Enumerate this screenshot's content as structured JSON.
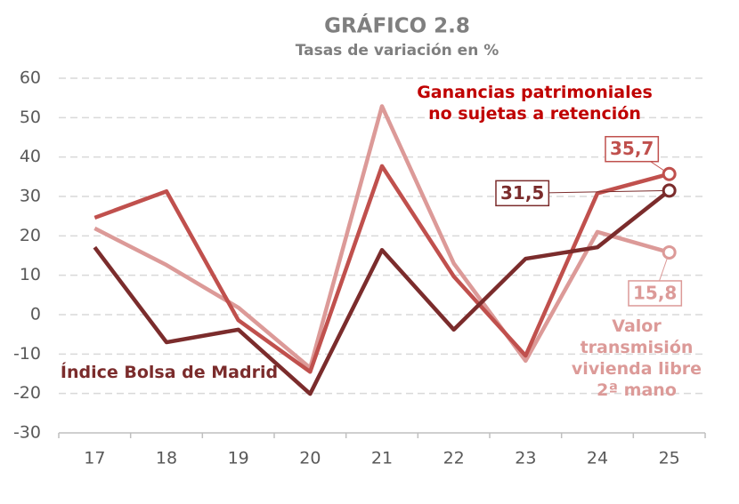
{
  "chart_data": {
    "type": "line",
    "title": "GRÁFICO 2.8",
    "subtitle": "Tasas de variación en %",
    "categories": [
      "17",
      "18",
      "19",
      "20",
      "21",
      "22",
      "23",
      "24",
      "25"
    ],
    "ylim": [
      -30,
      60
    ],
    "yticks": [
      -30,
      -20,
      -10,
      0,
      10,
      20,
      30,
      40,
      50,
      60
    ],
    "grid": true,
    "series": [
      {
        "name": "Ganancias patrimoniales\nno sujetas a retención",
        "color": "#c0504d",
        "values": [
          24.6,
          31.3,
          -1.4,
          -14.5,
          37.7,
          9.7,
          -10.4,
          30.8,
          35.7
        ],
        "value_labels": [
          null,
          null,
          null,
          null,
          null,
          null,
          null,
          null,
          "35,7"
        ]
      },
      {
        "name": "Índice Bolsa de Madrid",
        "color": "#7b2c2c",
        "values": [
          17.1,
          -7,
          -3.8,
          -20.1,
          16.4,
          -3.8,
          14.2,
          17.1,
          31.5
        ],
        "value_labels": [
          null,
          null,
          null,
          null,
          null,
          null,
          null,
          null,
          "31,5"
        ]
      },
      {
        "name": "Valor\ntransmisión\nvivienda libre\n2ª mano",
        "color": "#dc9a98",
        "values": [
          21.9,
          12.6,
          1.8,
          -13.5,
          52.9,
          13,
          -11.7,
          21,
          15.8
        ],
        "value_labels": [
          null,
          null,
          null,
          null,
          null,
          null,
          null,
          null,
          "15,8"
        ]
      }
    ]
  }
}
